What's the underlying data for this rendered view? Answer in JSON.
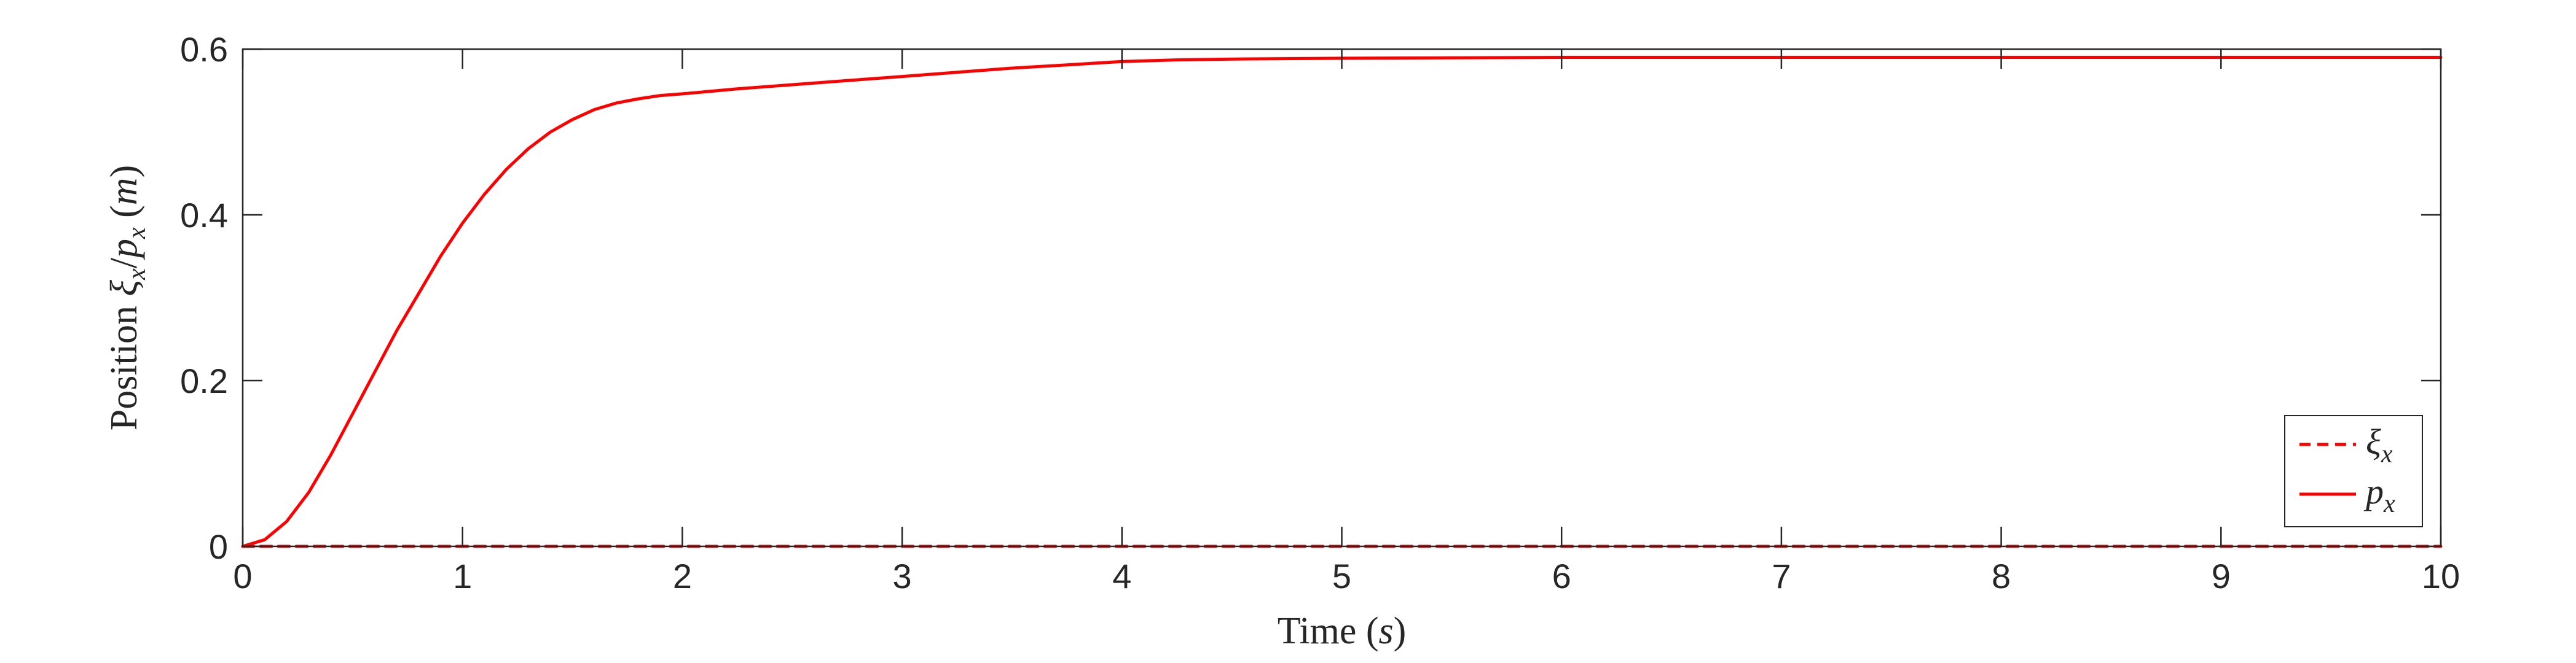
{
  "chart_data": {
    "type": "line",
    "xlabel": "Time (s)",
    "ylabel": "Position ξx/px (m)",
    "xlim": [
      0,
      10
    ],
    "ylim": [
      0,
      0.6
    ],
    "x_ticks": [
      "0",
      "1",
      "2",
      "3",
      "4",
      "5",
      "6",
      "7",
      "8",
      "9",
      "10"
    ],
    "y_ticks": [
      "0",
      "0.2",
      "0.4",
      "0.6"
    ],
    "grid": false,
    "legend_position": "bottom-right",
    "series": [
      {
        "name": "ξx",
        "color": "#ff0000",
        "style": "dashed",
        "x": [
          0,
          10
        ],
        "y": [
          0,
          0
        ]
      },
      {
        "name": "px",
        "color": "#ff0000",
        "style": "solid",
        "x": [
          0,
          0.1,
          0.2,
          0.3,
          0.4,
          0.5,
          0.6,
          0.7,
          0.8,
          0.9,
          1.0,
          1.1,
          1.2,
          1.3,
          1.4,
          1.5,
          1.6,
          1.7,
          1.8,
          1.9,
          2.0,
          2.25,
          2.5,
          2.75,
          3.0,
          3.25,
          3.5,
          3.75,
          4.0,
          4.25,
          4.5,
          5.0,
          6.0,
          7.0,
          8.0,
          9.0,
          10.0
        ],
        "y": [
          0,
          0.008,
          0.03,
          0.065,
          0.11,
          0.16,
          0.21,
          0.26,
          0.305,
          0.35,
          0.39,
          0.425,
          0.455,
          0.48,
          0.5,
          0.515,
          0.527,
          0.535,
          0.54,
          0.544,
          0.546,
          0.552,
          0.557,
          0.562,
          0.567,
          0.572,
          0.577,
          0.581,
          0.585,
          0.587,
          0.588,
          0.589,
          0.59,
          0.59,
          0.59,
          0.59,
          0.59
        ]
      }
    ]
  }
}
